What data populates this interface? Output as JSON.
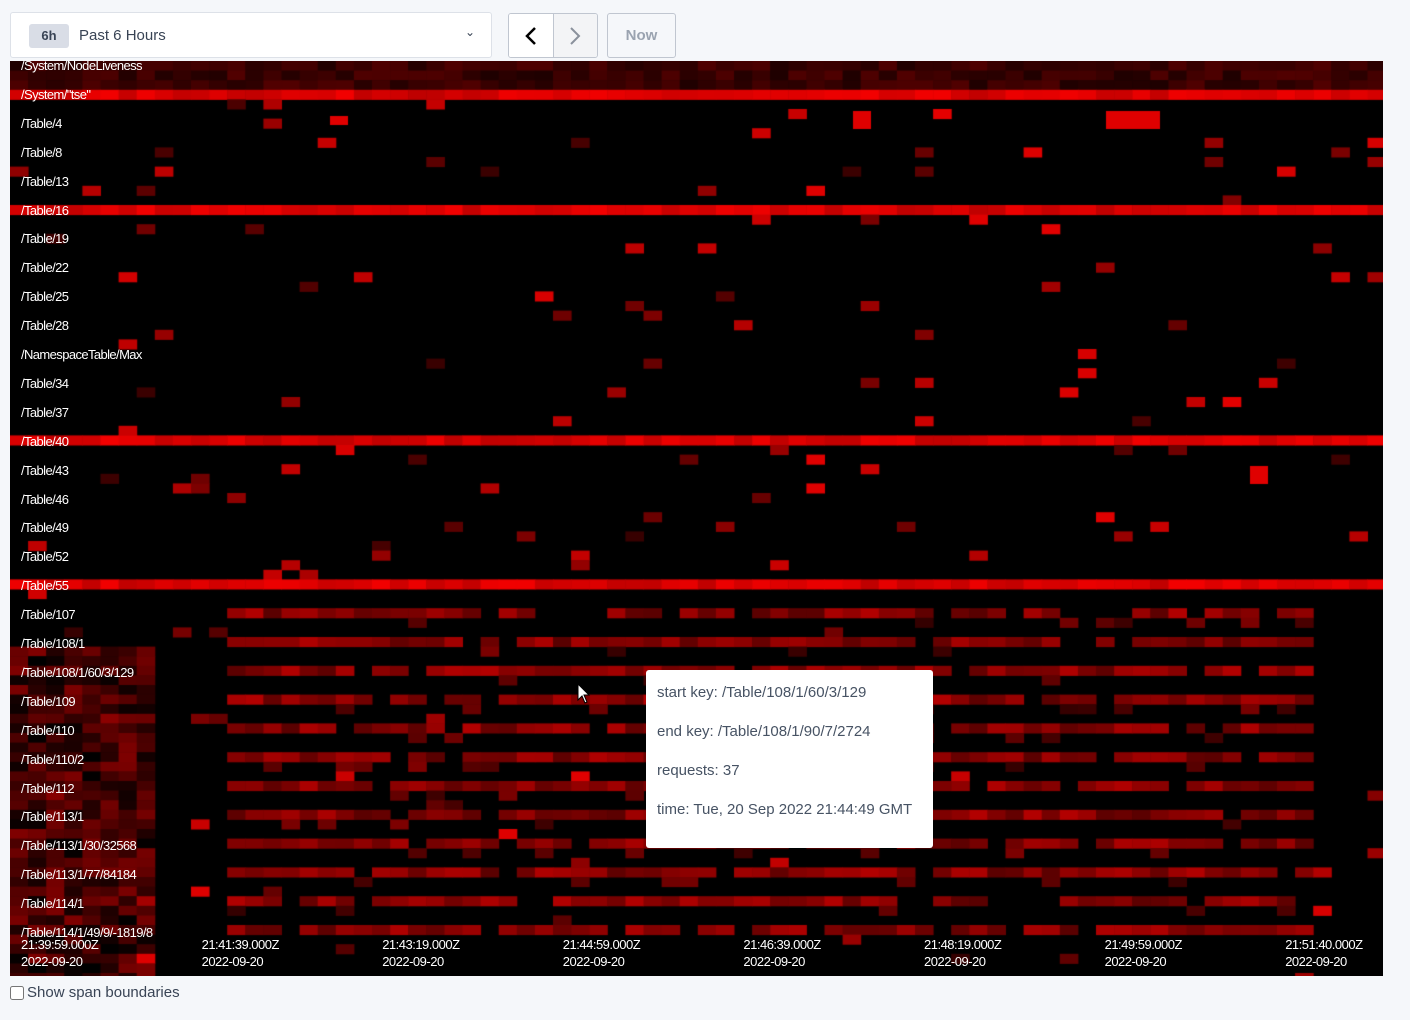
{
  "toolbar": {
    "range_badge": "6h",
    "range_label": "Past 6 Hours",
    "prev_icon": "chevron-left-icon",
    "next_icon": "chevron-right-icon",
    "now_label": "Now"
  },
  "heatmap": {
    "keys": [
      "/System/NodeLiveness",
      "/System/\"tse\"",
      "/Table/4",
      "/Table/8",
      "/Table/13",
      "/Table/16",
      "/Table/19",
      "/Table/22",
      "/Table/25",
      "/Table/28",
      "/NamespaceTable/Max",
      "/Table/34",
      "/Table/37",
      "/Table/40",
      "/Table/43",
      "/Table/46",
      "/Table/49",
      "/Table/52",
      "/Table/55",
      "/Table/107",
      "/Table/108/1",
      "/Table/108/1/60/3/129",
      "/Table/109",
      "/Table/110",
      "/Table/110/2",
      "/Table/112",
      "/Table/113/1",
      "/Table/113/1/30/32568",
      "/Table/113/1/77/84184",
      "/Table/114/1",
      "/Table/114/1/49/9/-1819/8"
    ],
    "times": [
      {
        "time": "21:39:59.000Z",
        "date": "2022-09-20"
      },
      {
        "time": "21:41:39.000Z",
        "date": "2022-09-20"
      },
      {
        "time": "21:43:19.000Z",
        "date": "2022-09-20"
      },
      {
        "time": "21:44:59.000Z",
        "date": "2022-09-20"
      },
      {
        "time": "21:46:39.000Z",
        "date": "2022-09-20"
      },
      {
        "time": "21:48:19.000Z",
        "date": "2022-09-20"
      },
      {
        "time": "21:49:59.000Z",
        "date": "2022-09-20"
      },
      {
        "time": "21:51:40.000Z",
        "date": "2022-09-20"
      }
    ],
    "color_hot": "#ff0000",
    "color_bg": "#000000"
  },
  "tooltip": {
    "start_key": "start key: /Table/108/1/60/3/129",
    "end_key": "end key: /Table/108/1/90/7/2724",
    "requests": "requests: 37",
    "time": "time: Tue, 20 Sep 2022 21:44:49 GMT"
  },
  "footer": {
    "show_span_boundaries": "Show span boundaries",
    "checked": false
  }
}
